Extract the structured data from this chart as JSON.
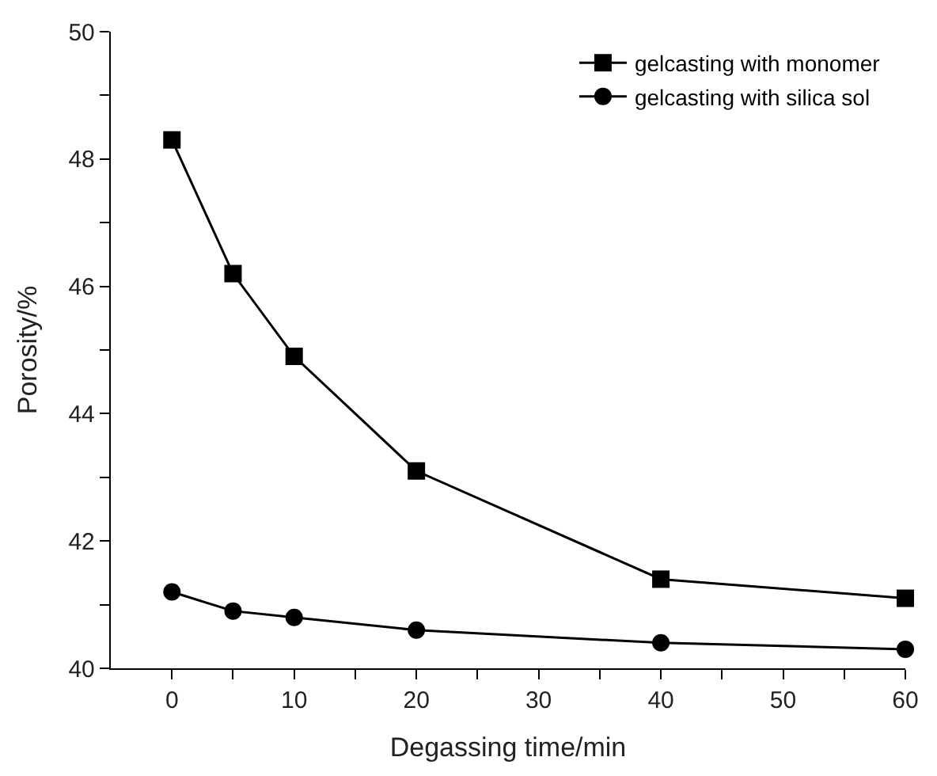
{
  "chart_data": {
    "type": "line",
    "xlabel": "Degassing time/min",
    "ylabel": "Porosity/%",
    "x": [
      0,
      5,
      10,
      20,
      40,
      60
    ],
    "series": [
      {
        "name": "gelcasting with monomer",
        "color": "#000000",
        "marker": "square",
        "values": [
          48.3,
          46.2,
          44.9,
          43.1,
          41.4,
          41.1
        ]
      },
      {
        "name": "gelcasting with silica sol",
        "color": "#000000",
        "marker": "circle",
        "values": [
          41.2,
          40.9,
          40.8,
          40.6,
          40.4,
          40.3
        ]
      }
    ],
    "xlim": [
      -5,
      60
    ],
    "xticks": [
      0,
      {
        "value": 5,
        "label": null
      },
      10,
      {
        "value": 15,
        "label": null
      },
      20,
      {
        "value": 25,
        "label": null
      },
      30,
      {
        "value": 35,
        "label": null
      },
      40,
      {
        "value": 45,
        "label": null
      },
      50,
      {
        "value": 55,
        "label": null
      },
      60
    ],
    "ylim": [
      40,
      50
    ],
    "yticks": [
      40,
      {
        "value": 41,
        "label": null
      },
      42,
      {
        "value": 43,
        "label": null
      },
      44,
      {
        "value": 45,
        "label": null
      },
      46,
      {
        "value": 47,
        "label": null
      },
      48,
      {
        "value": 49,
        "label": null
      },
      50
    ],
    "legend": "top right",
    "line_style": "solid"
  }
}
